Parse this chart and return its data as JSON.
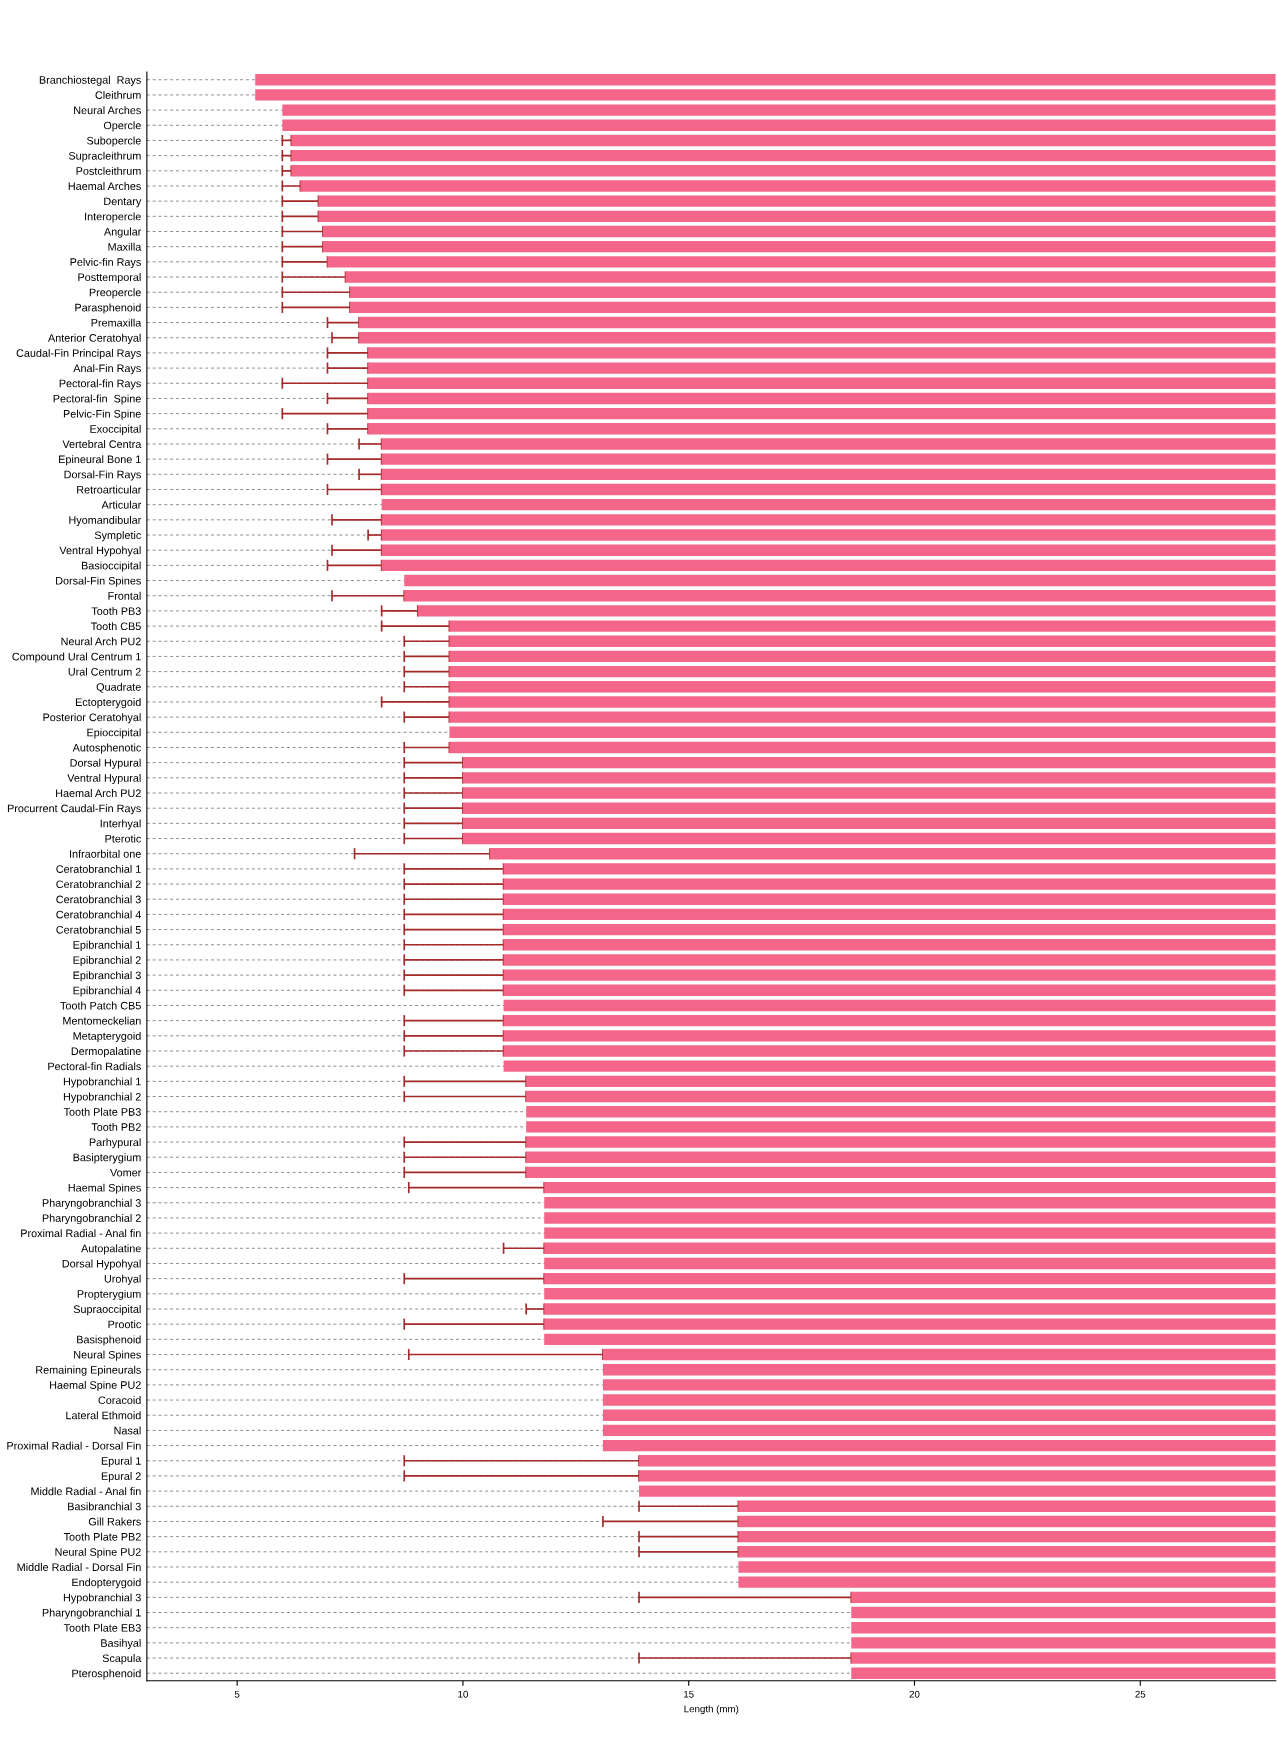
{
  "chart_data": {
    "type": "bar",
    "orientation": "horizontal",
    "xlabel": "Length (mm)",
    "xlim": [
      3,
      28
    ],
    "xticks": [
      5,
      10,
      15,
      20,
      25
    ],
    "grid": "y",
    "tick_labels": "xy",
    "categories": [
      "Branchiostegal  Rays",
      "Cleithrum",
      "Neural Arches",
      "Opercle",
      "Subopercle",
      "Supracleithrum",
      "Postcleithrum",
      "Haemal Arches",
      "Dentary",
      "Interopercle",
      "Angular",
      "Maxilla",
      "Pelvic-fin Rays",
      "Posttemporal",
      "Preopercle",
      "Parasphenoid",
      "Premaxilla",
      "Anterior Ceratohyal",
      "Caudal-Fin Principal Rays",
      "Anal-Fin Rays",
      "Pectoral-fin Rays",
      "Pectoral-fin  Spine",
      "Pelvic-Fin Spine",
      "Exoccipital",
      "Vertebral Centra",
      "Epineural Bone 1",
      "Dorsal-Fin Rays",
      "Retroarticular",
      "Articular",
      "Hyomandibular",
      "Sympletic",
      "Ventral Hypohyal",
      "Basioccipital",
      "Dorsal-Fin Spines",
      "Frontal",
      "Tooth PB3",
      "Tooth CB5",
      "Neural Arch PU2",
      "Compound Ural Centrum 1",
      "Ural Centrum 2",
      "Quadrate",
      "Ectopterygoid",
      "Posterior Ceratohyal",
      "Epioccipital",
      "Autosphenotic",
      "Dorsal Hypural",
      "Ventral Hypural",
      "Haemal Arch PU2",
      "Procurrent Caudal-Fin Rays",
      "Interhyal",
      "Pterotic",
      "Infraorbital one",
      "Ceratobranchial 1",
      "Ceratobranchial 2",
      "Ceratobranchial 3",
      "Ceratobranchial 4",
      "Ceratobranchial 5",
      "Epibranchial 1",
      "Epibranchial 2",
      "Epibranchial 3",
      "Epibranchial 4",
      "Tooth Patch CB5",
      "Mentomeckelian",
      "Metapterygoid",
      "Dermopalatine",
      "Pectoral-fin Radials",
      "Hypobranchial 1",
      "Hypobranchial 2",
      "Tooth Plate PB3",
      "Tooth PB2",
      "Parhypural",
      "Basipterygium",
      "Vomer",
      "Haemal Spines",
      "Pharyngobranchial 3",
      "Pharyngobranchial 2",
      "Proximal Radial - Anal fin",
      "Autopalatine",
      "Dorsal Hypohyal",
      "Urohyal",
      "Propterygium",
      "Supraoccipital",
      "Prootic",
      "Basisphenoid",
      "Neural Spines",
      "Remaining Epineurals",
      "Haemal Spine PU2",
      "Coracoid",
      "Lateral Ethmoid",
      "Nasal",
      "Proximal Radial - Dorsal Fin",
      "Epural 1",
      "Epural 2",
      "Middle Radial - Anal fin",
      "Basibranchial 3",
      "Gill Rakers",
      "Tooth Plate PB2",
      "Neural Spine PU2",
      "Middle Radial - Dorsal Fin",
      "Endopterygoid",
      "Hypobranchial 3",
      "Pharyngobranchial 1",
      "Tooth Plate EB3",
      "Basihyal",
      "Scapula",
      "Pterosphenoid"
    ],
    "color": "#f4668a",
    "base": [
      28,
      28,
      28,
      28,
      28,
      28,
      28,
      28,
      28,
      28,
      28,
      28,
      28,
      28,
      28,
      28,
      28,
      28,
      28,
      28,
      28,
      28,
      28,
      28,
      28,
      28,
      28,
      28,
      28,
      28,
      28,
      28,
      28,
      28,
      28,
      28,
      28,
      28,
      28,
      28,
      28,
      28,
      28,
      28,
      28,
      28,
      28,
      28,
      28,
      28,
      28,
      28,
      28,
      28,
      28,
      28,
      28,
      28,
      28,
      28,
      28,
      28,
      28,
      28,
      28,
      28,
      28,
      28,
      28,
      28,
      28,
      28,
      28,
      28,
      28,
      28,
      28,
      28,
      28,
      28,
      28,
      28,
      28,
      28,
      28,
      28,
      28,
      28,
      28,
      28,
      28,
      28,
      28,
      28,
      28,
      28,
      28,
      28,
      28,
      28,
      28,
      28,
      28,
      28,
      28,
      28
    ],
    "values": [
      -22.6,
      -22.6,
      -22.0,
      -22.0,
      -21.8,
      -21.8,
      -21.8,
      -21.6,
      -21.2,
      -21.2,
      -21.1,
      -21.1,
      -21.0,
      -20.6,
      -20.5,
      -20.5,
      -20.3,
      -20.3,
      -20.1,
      -20.1,
      -20.1,
      -20.1,
      -20.1,
      -20.1,
      -19.8,
      -19.8,
      -19.8,
      -19.8,
      -19.8,
      -19.8,
      -19.8,
      -19.8,
      -19.8,
      -19.3,
      -19.3,
      -19.0,
      -18.3,
      -18.3,
      -18.3,
      -18.3,
      -18.3,
      -18.3,
      -18.3,
      -18.3,
      -18.3,
      -18.0,
      -18.0,
      -18.0,
      -18.0,
      -18.0,
      -18.0,
      -17.4,
      -17.1,
      -17.1,
      -17.1,
      -17.1,
      -17.1,
      -17.1,
      -17.1,
      -17.1,
      -17.1,
      -17.1,
      -17.1,
      -17.1,
      -17.1,
      -17.1,
      -16.6,
      -16.6,
      -16.6,
      -16.6,
      -16.6,
      -16.6,
      -16.6,
      -16.2,
      -16.2,
      -16.2,
      -16.2,
      -16.2,
      -16.2,
      -16.2,
      -16.2,
      -16.2,
      -16.2,
      -16.2,
      -14.9,
      -14.9,
      -14.9,
      -14.9,
      -14.9,
      -14.9,
      -14.9,
      -14.1,
      -14.1,
      -14.1,
      -11.9,
      -11.9,
      -11.9,
      -11.9,
      -11.9,
      -11.9,
      -9.4,
      -9.4,
      -9.4,
      -9.4,
      -9.4,
      -9.4
    ],
    "errors": [
      null,
      null,
      null,
      null,
      [
        6.0,
        6.2
      ],
      [
        6.0,
        6.2
      ],
      [
        6.0,
        6.2
      ],
      [
        6.0,
        6.4
      ],
      [
        6.0,
        6.8
      ],
      [
        6.0,
        6.8
      ],
      [
        6.0,
        6.9
      ],
      [
        6.0,
        6.9
      ],
      [
        6.0,
        7.0
      ],
      [
        6.0,
        7.4
      ],
      [
        6.0,
        7.5
      ],
      [
        6.0,
        7.5
      ],
      [
        7.0,
        7.7
      ],
      [
        7.1,
        7.7
      ],
      [
        7.0,
        7.9
      ],
      [
        7.0,
        7.9
      ],
      [
        6.0,
        7.9
      ],
      [
        7.0,
        7.9
      ],
      [
        6.0,
        7.9
      ],
      [
        7.0,
        7.9
      ],
      [
        7.7,
        8.2
      ],
      [
        7.0,
        8.2
      ],
      [
        7.7,
        8.2
      ],
      [
        7.0,
        8.2
      ],
      null,
      [
        7.1,
        8.2
      ],
      [
        7.9,
        8.2
      ],
      [
        7.1,
        8.2
      ],
      [
        7.0,
        8.2
      ],
      null,
      [
        7.1,
        8.7
      ],
      [
        8.2,
        9.0
      ],
      [
        8.2,
        9.7
      ],
      [
        8.7,
        9.7
      ],
      [
        8.7,
        9.7
      ],
      [
        8.7,
        9.7
      ],
      [
        8.7,
        9.7
      ],
      [
        8.2,
        9.7
      ],
      [
        8.7,
        9.7
      ],
      null,
      [
        8.7,
        9.7
      ],
      [
        8.7,
        10.0
      ],
      [
        8.7,
        10.0
      ],
      [
        8.7,
        10.0
      ],
      [
        8.7,
        10.0
      ],
      [
        8.7,
        10.0
      ],
      [
        8.7,
        10.0
      ],
      [
        7.6,
        10.6
      ],
      [
        8.7,
        10.9
      ],
      [
        8.7,
        10.9
      ],
      [
        8.7,
        10.9
      ],
      [
        8.7,
        10.9
      ],
      [
        8.7,
        10.9
      ],
      [
        8.7,
        10.9
      ],
      [
        8.7,
        10.9
      ],
      [
        8.7,
        10.9
      ],
      [
        8.7,
        10.9
      ],
      null,
      [
        8.7,
        10.9
      ],
      [
        8.7,
        10.9
      ],
      [
        8.7,
        10.9
      ],
      null,
      [
        8.7,
        11.4
      ],
      [
        8.7,
        11.4
      ],
      null,
      null,
      [
        8.7,
        11.4
      ],
      [
        8.7,
        11.4
      ],
      [
        8.7,
        11.4
      ],
      [
        8.8,
        11.8
      ],
      null,
      null,
      null,
      [
        10.9,
        11.8
      ],
      null,
      [
        8.7,
        11.8
      ],
      null,
      [
        11.4,
        11.8
      ],
      [
        8.7,
        11.8
      ],
      null,
      [
        8.8,
        13.1
      ],
      null,
      null,
      null,
      null,
      null,
      null,
      [
        8.7,
        13.9
      ],
      [
        8.7,
        13.9
      ],
      null,
      [
        13.9,
        16.1
      ],
      [
        13.1,
        16.1
      ],
      [
        13.9,
        16.1
      ],
      [
        13.9,
        16.1
      ],
      null,
      null,
      [
        13.9,
        18.6
      ],
      null,
      null,
      null,
      [
        13.9,
        18.6
      ],
      null
    ]
  }
}
